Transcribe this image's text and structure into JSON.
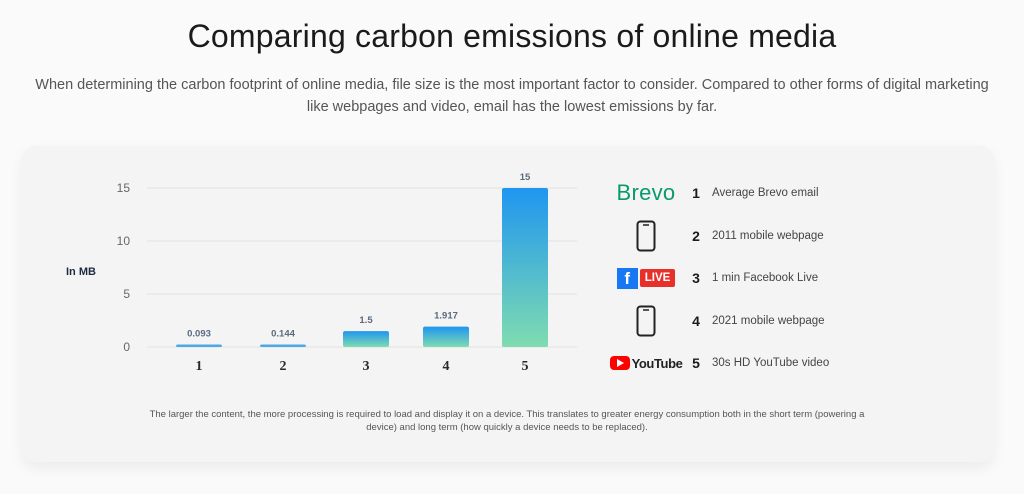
{
  "page": {
    "title": "Comparing carbon emissions of online media",
    "subtitle": "When determining the carbon footprint of online media, file size is the most important factor to consider. Compared to other forms of digital marketing like webpages and video, email has the lowest emissions by far."
  },
  "chart_data": {
    "type": "bar",
    "ylabel": "In MB",
    "ylim": [
      0,
      16
    ],
    "yticks": [
      0,
      5,
      10,
      15
    ],
    "grid": true,
    "categories": [
      "1",
      "2",
      "3",
      "4",
      "5"
    ],
    "values": [
      0.093,
      0.144,
      1.5,
      1.917,
      15
    ],
    "value_labels": [
      "0.093",
      "0.144",
      "1.5",
      "1.917",
      "15"
    ],
    "colors": {
      "bar_top": "#1f96f0",
      "bar_bottom": "#7fdcb0",
      "small_bar": "#4aaae8",
      "grid": "#e2e2e2",
      "label": "#5a6b7f"
    }
  },
  "legend": [
    {
      "icon": "brevo-logo",
      "brand": "Brevo",
      "num": "1",
      "text": "Average Brevo email"
    },
    {
      "icon": "phone-icon",
      "num": "2",
      "text": "2011 mobile webpage"
    },
    {
      "icon": "facebook-live-logo",
      "brand": "f",
      "badge": "LIVE",
      "num": "3",
      "text": "1 min Facebook Live"
    },
    {
      "icon": "phone-icon",
      "num": "4",
      "text": "2021 mobile webpage"
    },
    {
      "icon": "youtube-logo",
      "brand": "YouTube",
      "num": "5",
      "text": "30s HD YouTube video"
    }
  ],
  "caption": "The larger the content, the more processing is required to load and display it on a device. This translates to greater energy consumption both in the short term (powering a device) and long term (how quickly a device needs to be replaced)."
}
